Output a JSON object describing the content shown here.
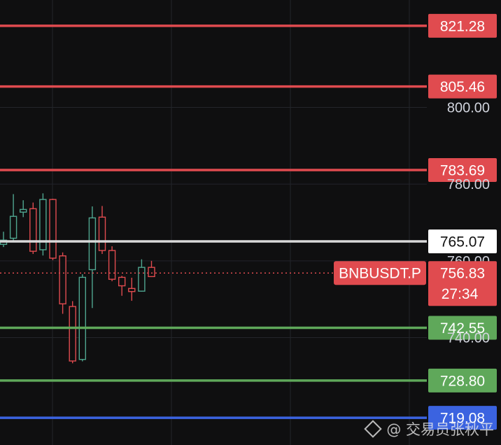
{
  "chart_data": {
    "type": "candlestick",
    "symbol": "BNBUSDT.P",
    "ylim": [
      712,
      828
    ],
    "y_axis_ticks": [
      "800.00",
      "780.00",
      "760.00",
      "740.00"
    ],
    "current_price": {
      "value": 756.83,
      "label": "756.83",
      "countdown": "27:34",
      "color": "#e04b4f"
    },
    "levels": [
      {
        "value": 821.28,
        "label": "821.28",
        "color": "#e04b4f"
      },
      {
        "value": 805.46,
        "label": "805.46",
        "color": "#e04b4f"
      },
      {
        "value": 783.69,
        "label": "783.69",
        "color": "#e04b4f"
      },
      {
        "value": 765.07,
        "label": "765.07",
        "color": "#d9d9d9"
      },
      {
        "value": 742.55,
        "label": "742.55",
        "color": "#5fa85a"
      },
      {
        "value": 728.8,
        "label": "728.80",
        "color": "#5fa85a"
      },
      {
        "value": 719.08,
        "label": "719.08",
        "color": "#3b63e0"
      }
    ],
    "candles": [
      {
        "o": 764.3,
        "h": 767.6,
        "l": 763.6,
        "c": 765.4
      },
      {
        "o": 765.9,
        "h": 777.4,
        "l": 765.0,
        "c": 771.6
      },
      {
        "o": 772.7,
        "h": 775.8,
        "l": 771.4,
        "c": 773.4
      },
      {
        "o": 773.6,
        "h": 775.2,
        "l": 761.8,
        "c": 762.5
      },
      {
        "o": 762.9,
        "h": 777.6,
        "l": 761.4,
        "c": 776.0
      },
      {
        "o": 776.0,
        "h": 776.2,
        "l": 760.2,
        "c": 760.7
      },
      {
        "o": 761.3,
        "h": 762.2,
        "l": 746.2,
        "c": 748.8
      },
      {
        "o": 748.1,
        "h": 749.5,
        "l": 733.3,
        "c": 733.9
      },
      {
        "o": 734.3,
        "h": 756.5,
        "l": 733.8,
        "c": 755.7
      },
      {
        "o": 757.7,
        "h": 774.2,
        "l": 747.7,
        "c": 771.2
      },
      {
        "o": 771.4,
        "h": 774.3,
        "l": 761.8,
        "c": 762.7
      },
      {
        "o": 762.7,
        "h": 763.8,
        "l": 754.7,
        "c": 755.2
      },
      {
        "o": 755.7,
        "h": 756.1,
        "l": 750.9,
        "c": 753.5
      },
      {
        "o": 752.8,
        "h": 755.6,
        "l": 749.6,
        "c": 752.0
      },
      {
        "o": 752.1,
        "h": 760.4,
        "l": 752.0,
        "c": 758.3
      },
      {
        "o": 758.3,
        "h": 760.0,
        "l": 755.9,
        "c": 755.9
      }
    ],
    "up_color": "#4fa58f",
    "down_color": "#e04b4f"
  },
  "watermark": {
    "text": "@ 交易员张秋平"
  }
}
